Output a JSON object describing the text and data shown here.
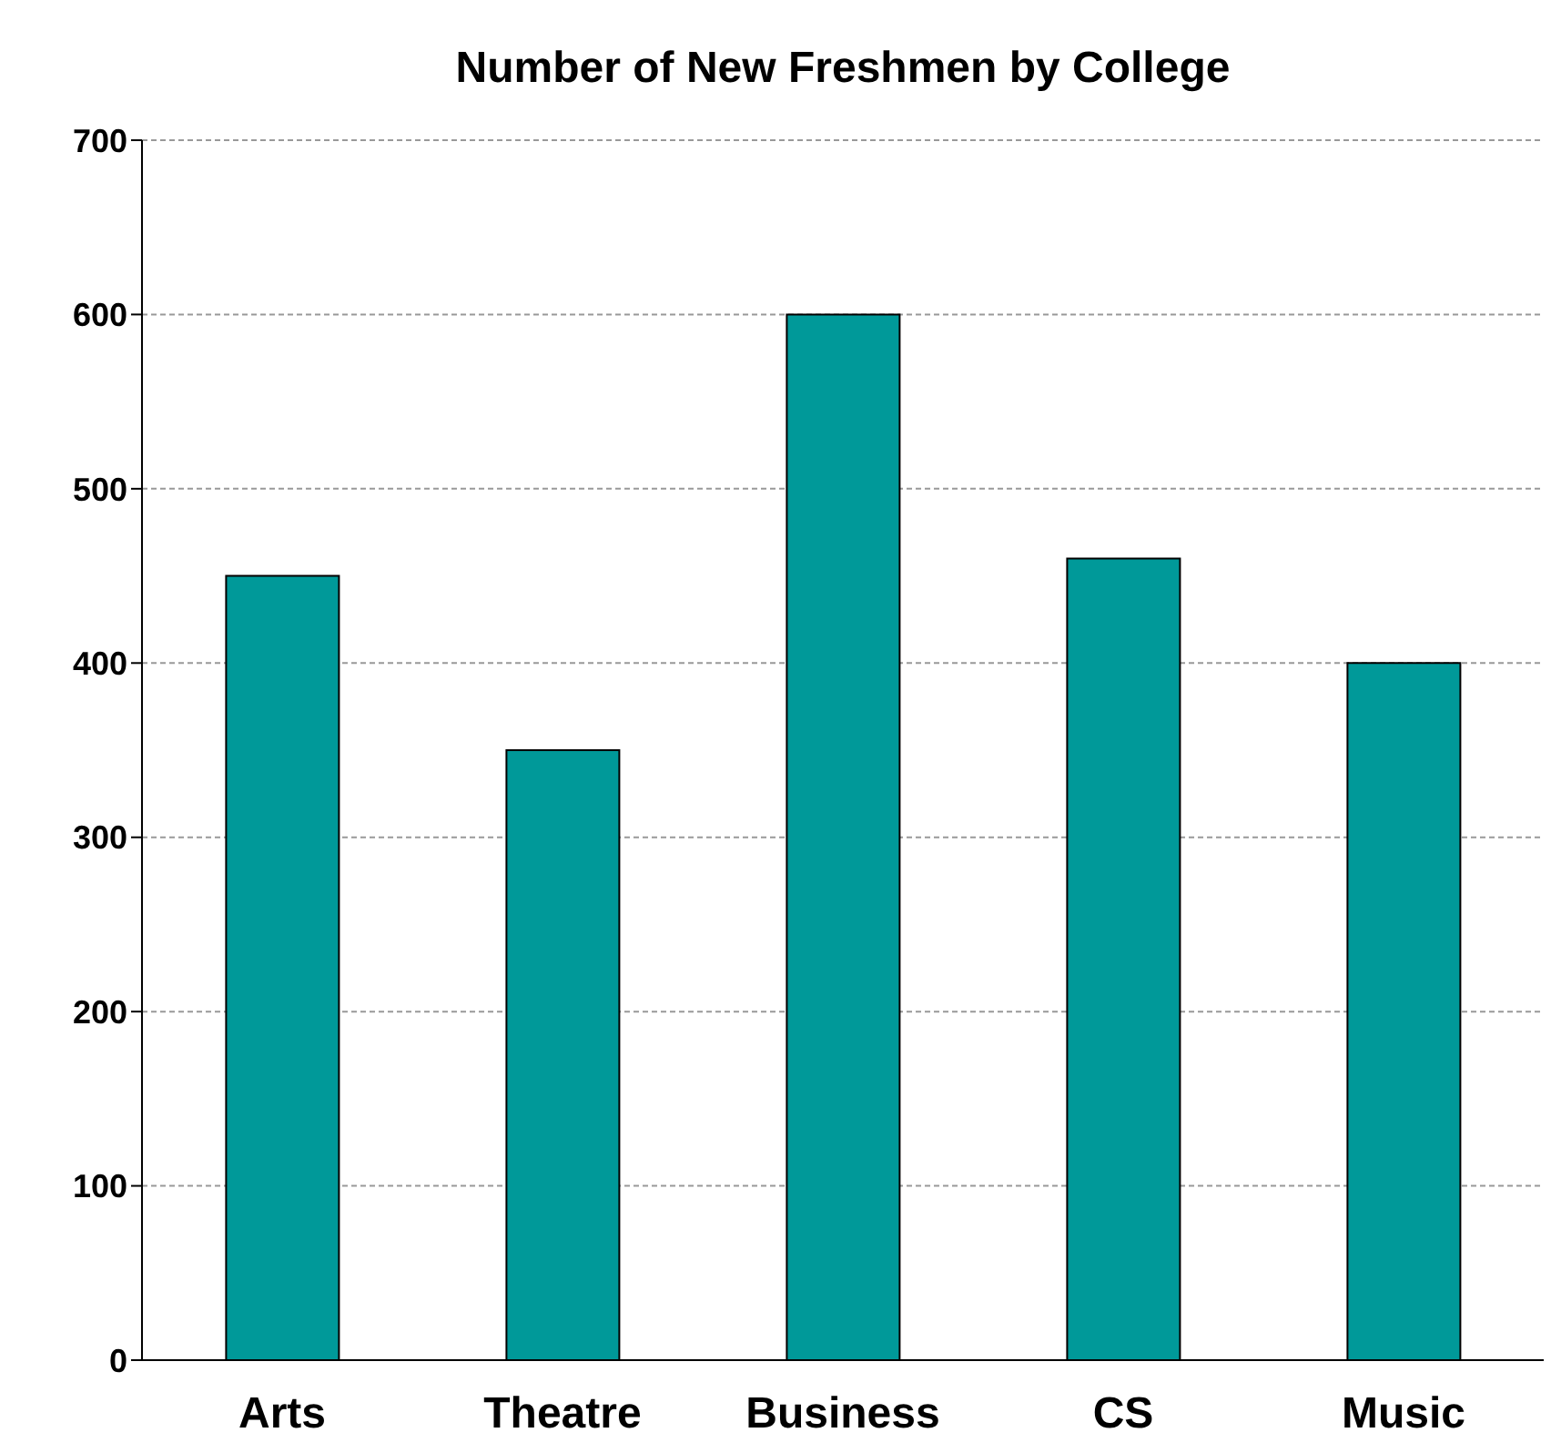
{
  "chart_data": {
    "type": "bar",
    "title": "Number of New Freshmen by College",
    "categories": [
      "Arts",
      "Theatre",
      "Business",
      "CS",
      "Music"
    ],
    "values": [
      450,
      350,
      600,
      460,
      400
    ],
    "color": "#009999",
    "ylim": [
      0,
      700
    ],
    "yticks": [
      0,
      100,
      200,
      300,
      400,
      500,
      600,
      700
    ],
    "grid": "y"
  }
}
